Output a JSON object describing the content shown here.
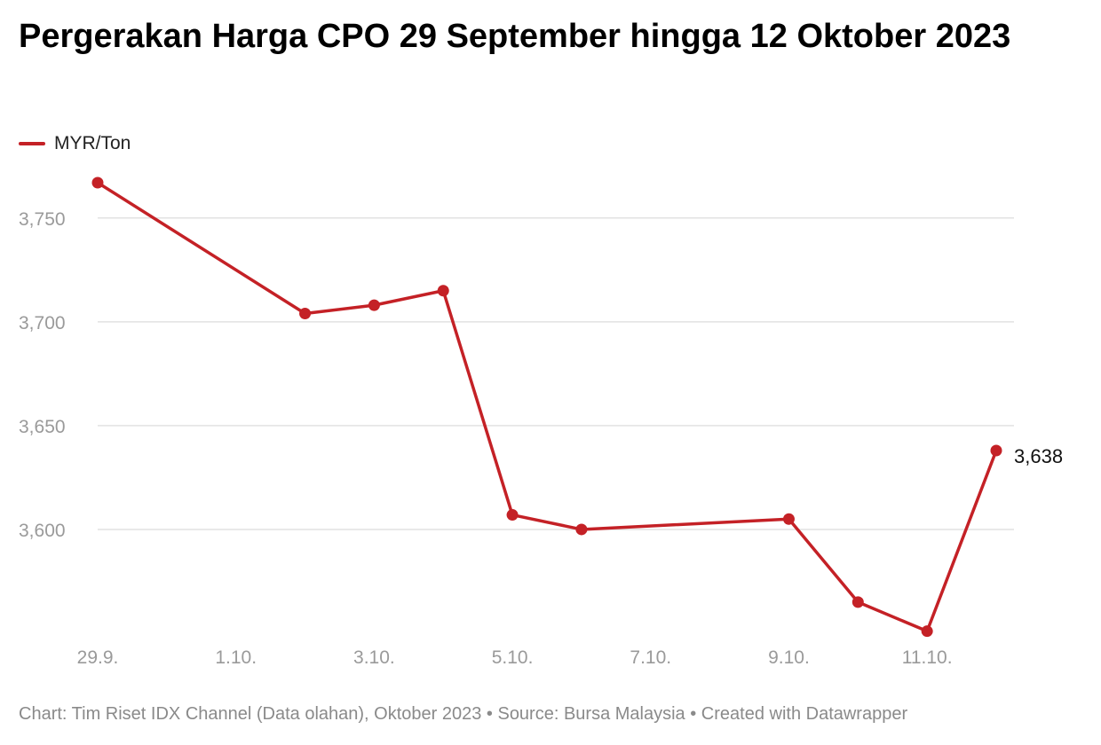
{
  "chart_data": {
    "type": "line",
    "title": "Pergerakan Harga CPO 29 September hingga 12 Oktober 2023",
    "legend": {
      "placement": "top-left"
    },
    "series": [
      {
        "name": "MYR/Ton",
        "color": "#c42126",
        "points": [
          {
            "x": "2023-09-29",
            "y": 3767
          },
          {
            "x": "2023-10-02",
            "y": 3704
          },
          {
            "x": "2023-10-03",
            "y": 3708
          },
          {
            "x": "2023-10-04",
            "y": 3715
          },
          {
            "x": "2023-10-05",
            "y": 3607
          },
          {
            "x": "2023-10-06",
            "y": 3600
          },
          {
            "x": "2023-10-09",
            "y": 3605
          },
          {
            "x": "2023-10-10",
            "y": 3565
          },
          {
            "x": "2023-10-11",
            "y": 3551
          },
          {
            "x": "2023-10-12",
            "y": 3638
          }
        ]
      }
    ],
    "end_label": "3,638",
    "x_ticks": [
      {
        "x": "2023-09-29",
        "label": "29.9."
      },
      {
        "x": "2023-10-01",
        "label": "1.10."
      },
      {
        "x": "2023-10-03",
        "label": "3.10."
      },
      {
        "x": "2023-10-05",
        "label": "5.10."
      },
      {
        "x": "2023-10-07",
        "label": "7.10."
      },
      {
        "x": "2023-10-09",
        "label": "9.10."
      },
      {
        "x": "2023-10-11",
        "label": "11.10."
      }
    ],
    "y_ticks": [
      {
        "value": 3750,
        "label": "3,750"
      },
      {
        "value": 3700,
        "label": "3,700"
      },
      {
        "value": 3650,
        "label": "3,650"
      },
      {
        "value": 3600,
        "label": "3,600"
      }
    ],
    "xlim": [
      "2023-09-29",
      "2023-10-12"
    ],
    "ylim": [
      3550,
      3767
    ],
    "grid": "horizontal",
    "xlabel": "",
    "ylabel": ""
  },
  "footer": "Chart: Tim Riset IDX Channel (Data olahan), Oktober 2023 • Source: Bursa Malaysia • Created with Datawrapper"
}
